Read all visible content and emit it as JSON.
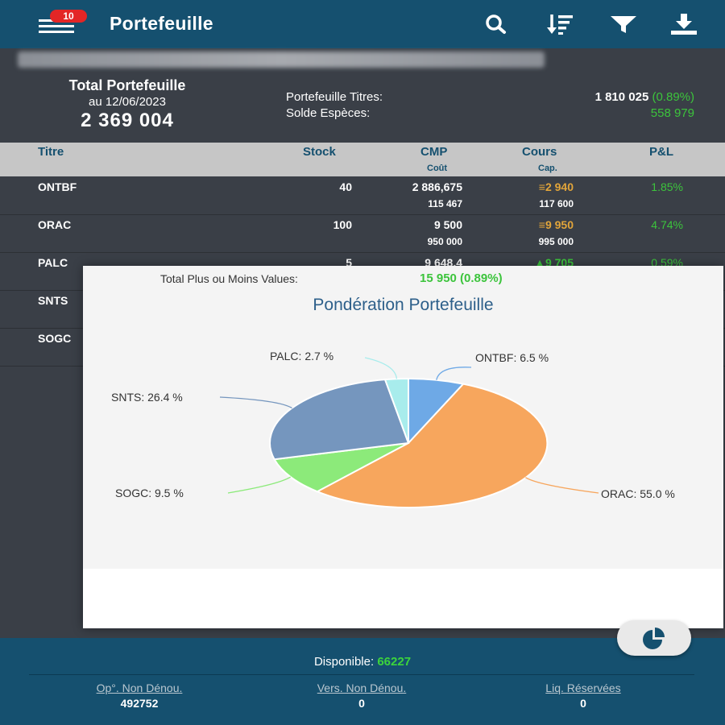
{
  "header": {
    "title": "Portefeuille",
    "notification_count": "10"
  },
  "summary": {
    "total_title": "Total Portefeuille",
    "total_date": "au 12/06/2023",
    "total_value": "2 369 004",
    "titres_label": "Portefeuille Titres:",
    "titres_value": "1 810 025",
    "titres_change": "(0.89%)",
    "especes_label": "Solde Espèces:",
    "especes_value": "558 979"
  },
  "table": {
    "headers": {
      "titre": "Titre",
      "stock": "Stock",
      "cmp": "CMP",
      "cmp_sub": "Coût",
      "cours": "Cours",
      "cours_sub": "Cap.",
      "pl": "P&L"
    },
    "rows": [
      {
        "titre": "ONTBF",
        "stock": "40",
        "cmp": "2 886,675",
        "cout": "115 467",
        "cours": "2 940",
        "cap": "117 600",
        "pl": "1.85%",
        "trend": "flat"
      },
      {
        "titre": "ORAC",
        "stock": "100",
        "cmp": "9 500",
        "cout": "950 000",
        "cours": "9 950",
        "cap": "995 000",
        "pl": "4.74%",
        "trend": "flat"
      },
      {
        "titre": "PALC",
        "stock": "5",
        "cmp": "9 648,4",
        "cout": "",
        "cours": "9 705",
        "cap": "",
        "pl": "0.59%",
        "trend": "up"
      },
      {
        "titre": "SNTS",
        "stock": "",
        "cmp": "",
        "cout": "",
        "cours": "",
        "cap": "",
        "pl": "",
        "trend": ""
      },
      {
        "titre": "SOGC",
        "stock": "",
        "cmp": "",
        "cout": "",
        "cours": "",
        "cap": "",
        "pl": "",
        "trend": ""
      }
    ]
  },
  "popup": {
    "pv_label": "Total Plus ou Moins Values:",
    "pv_value": "15 950 (0.89%)"
  },
  "chart_data": {
    "type": "pie",
    "title": "Pondération Portefeuille",
    "slices": [
      {
        "label": "ONTBF: 6.5 %",
        "name": "ONTBF",
        "value": 6.5,
        "color": "#6ea9e6"
      },
      {
        "label": "ORAC: 55.0 %",
        "name": "ORAC",
        "value": 55.0,
        "color": "#f7a65d"
      },
      {
        "label": "SOGC: 9.5 %",
        "name": "SOGC",
        "value": 9.5,
        "color": "#8cea7a"
      },
      {
        "label": "SNTS: 26.4 %",
        "name": "SNTS",
        "value": 26.4,
        "color": "#7596be"
      },
      {
        "label": "PALC: 2.7 %",
        "name": "PALC",
        "value": 2.7,
        "color": "#a8ecec"
      }
    ],
    "legend": "none"
  },
  "bottom": {
    "dispo_label": "Disponible:",
    "dispo_value": "66227",
    "op_label": "Op°. Non Dénou.",
    "op_value": "492752",
    "vers_label": "Vers. Non Dénou.",
    "vers_value": "0",
    "liq_label": "Liq. Réservées",
    "liq_value": "0"
  },
  "colors": {
    "primary": "#15506f",
    "positive": "#3cc43c",
    "neutral": "#e2a53a",
    "background": "#3a3f47"
  }
}
